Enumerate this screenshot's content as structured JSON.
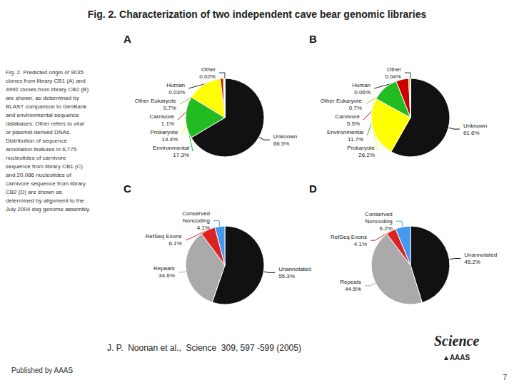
{
  "chart_data": [
    {
      "type": "pie",
      "title": "A",
      "categories": [
        "Unknown",
        "Environmental",
        "Prokaryote",
        "Carnivore",
        "Other Eukaryote",
        "Human",
        "Other"
      ],
      "values": [
        66.5,
        17.3,
        14.4,
        1.1,
        0.7,
        0.03,
        0.02
      ],
      "value_labels": [
        "66.5%",
        "17.3%",
        "14.4%",
        "1.1%",
        "0.7%",
        "0.03%",
        "0.02%"
      ],
      "colors": [
        "#111111",
        "#22BB22",
        "#FFFF00",
        "#CC0000",
        "#BBBB00",
        "#222222",
        "#333333"
      ],
      "data_labels": true,
      "annotations": [
        "Fig. 2. Characterization of two independent cave bear genomic libraries",
        "Fig. 2. Predicted origin of 9035\nclones from library CB1 (A) and\n4992 clones from library CB2 (B)\nare shown, as determined by\nBLAST comparison to GenBank\nand environmental sequence\ndatabases. Other refers to viral\nor plasmid-derived DNAs.\nDistribution of sequence\nannotation features in 6,775\nnucleotides of carnivore\nsequence from library CB1 (C)\nand 20,086 nucleotides of\ncarnivore sequence from library\nCB2 (D) are shown as\ndetermined by alignment to the\nJuly 2004 dog genome assembly.",
        "J. P.  Noonan et al.,  Science  309, 597 -599 (2005)",
        "Published by AAAS",
        "Science",
        "▲AAAS",
        "7"
      ]
    },
    {
      "type": "pie",
      "title": "B",
      "categories": [
        "Unknown",
        "Prokaryote",
        "Environmental",
        "Carnivore",
        "Other Eukaryote",
        "Human",
        "Other"
      ],
      "values": [
        61.6,
        26.2,
        11.7,
        5.5,
        0.7,
        0.06,
        0.04
      ],
      "value_labels": [
        "61.6%",
        "26.2%",
        "11.7%",
        "5.5%",
        "0.7%",
        "0.06%",
        "0.04%"
      ],
      "colors": [
        "#111111",
        "#FFFF00",
        "#22BB22",
        "#CC0000",
        "#BBBB00",
        "#222222",
        "#333333"
      ],
      "data_labels": true
    },
    {
      "type": "pie",
      "title": "C",
      "categories": [
        "Unannotated",
        "Repeats",
        "RefSeq Exons",
        "Conserved\nNoncoding"
      ],
      "values": [
        55.3,
        34.6,
        6.1,
        4.1
      ],
      "value_labels": [
        "55.3%",
        "34.6%",
        "6.1%",
        "4.1%"
      ],
      "colors": [
        "#111111",
        "#AAAAAA",
        "#DD2222",
        "#4499EE"
      ],
      "data_labels": true
    },
    {
      "type": "pie",
      "title": "D",
      "categories": [
        "Unannotated",
        "Repeats",
        "RefSeq Exons",
        "Conserved\nNoncoding"
      ],
      "values": [
        45.2,
        44.5,
        4.1,
        6.2
      ],
      "value_labels": [
        "45.2%",
        "44.5%",
        "4.1%",
        "6.2%"
      ],
      "colors": [
        "#111111",
        "#AAAAAA",
        "#DD2222",
        "#4499EE"
      ],
      "data_labels": true
    }
  ]
}
